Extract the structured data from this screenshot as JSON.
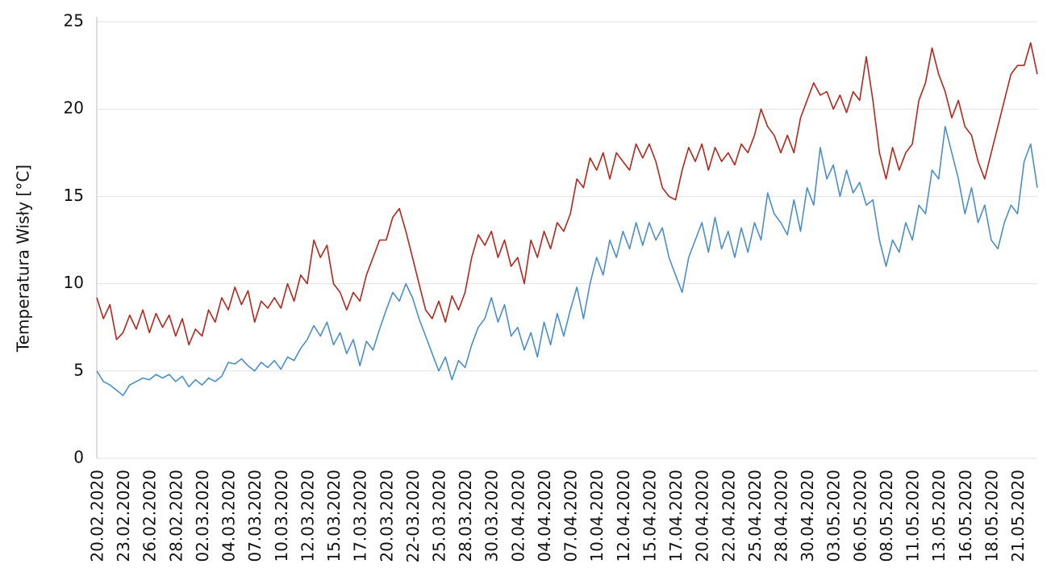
{
  "chart_data": {
    "type": "line",
    "ylabel": "Temperatura Wisły [°C]",
    "categories": [
      "20.02.2020",
      null,
      null,
      null,
      "23.02.2020",
      null,
      null,
      null,
      "26.02.2020",
      null,
      null,
      null,
      "28.02.2020",
      null,
      null,
      null,
      "02.03.2020",
      null,
      null,
      null,
      "04.03.2020",
      null,
      null,
      null,
      "07.03.2020",
      null,
      null,
      null,
      "10.03.2020",
      null,
      null,
      null,
      "12.03.2020",
      null,
      null,
      null,
      "15.03.2020",
      null,
      null,
      null,
      "17.03.2020",
      null,
      null,
      null,
      "20.03.2020",
      null,
      null,
      null,
      "22-03.2020",
      null,
      null,
      null,
      "25.03.2020",
      null,
      null,
      null,
      "28.03.2020",
      null,
      null,
      null,
      "30.03.2020",
      null,
      null,
      null,
      "02.04.2020",
      null,
      null,
      null,
      "04.04.2020",
      null,
      null,
      null,
      "07.04.2020",
      null,
      null,
      null,
      "10.04.2020",
      null,
      null,
      null,
      "12.04.2020",
      null,
      null,
      null,
      "15.04.2020",
      null,
      null,
      null,
      "17.04.2020",
      null,
      null,
      null,
      "20.04.2020",
      null,
      null,
      null,
      "22.04.2020",
      null,
      null,
      null,
      "25.04.2020",
      null,
      null,
      null,
      "28.04.2020",
      null,
      null,
      null,
      "30.04.2020",
      null,
      null,
      null,
      "03.05.2020",
      null,
      null,
      null,
      "06.05.2020",
      null,
      null,
      null,
      "08.05.2020",
      null,
      null,
      null,
      "11.05.2020",
      null,
      null,
      null,
      "13.05.2020",
      null,
      null,
      null,
      "16.05.2020",
      null,
      null,
      null,
      "18.05.2020",
      null,
      null,
      null,
      "21.05.2020",
      null,
      null,
      null
    ],
    "series": [
      {
        "color": "#b5261c",
        "values": [
          9.2,
          8.0,
          8.8,
          6.8,
          7.2,
          8.2,
          7.4,
          8.5,
          7.2,
          8.3,
          7.5,
          8.2,
          7.0,
          8.0,
          6.5,
          7.4,
          7.0,
          8.5,
          7.8,
          9.2,
          8.5,
          9.8,
          8.8,
          9.6,
          7.8,
          9.0,
          8.6,
          9.2,
          8.6,
          10.0,
          9.0,
          10.5,
          10.0,
          12.5,
          11.5,
          12.2,
          10.0,
          9.5,
          8.5,
          9.5,
          9.0,
          10.5,
          11.5,
          12.5,
          12.5,
          13.8,
          14.3,
          13.0,
          11.5,
          10.0,
          8.5,
          8.0,
          9.0,
          7.8,
          9.3,
          8.5,
          9.5,
          11.5,
          12.8,
          12.2,
          13.0,
          11.5,
          12.5,
          11.0,
          11.5,
          10.0,
          12.5,
          11.5,
          13.0,
          12.0,
          13.5,
          13.0,
          14.0,
          16.0,
          15.5,
          17.2,
          16.5,
          17.5,
          16.0,
          17.5,
          17.0,
          16.5,
          18.0,
          17.2,
          18.0,
          17.0,
          15.5,
          15.0,
          14.8,
          16.5,
          17.8,
          17.0,
          18.0,
          16.5,
          17.8,
          17.0,
          17.5,
          16.8,
          18.0,
          17.5,
          18.5,
          20.0,
          19.0,
          18.5,
          17.5,
          18.5,
          17.5,
          19.5,
          20.5,
          21.5,
          20.8,
          21.0,
          20.0,
          20.8,
          19.8,
          21.0,
          20.5,
          23.0,
          20.5,
          17.5,
          16.0,
          17.8,
          16.5,
          17.5,
          18.0,
          20.5,
          21.5,
          23.5,
          22.0,
          21.0,
          19.5,
          20.5,
          19.0,
          18.5,
          17.0,
          16.0,
          17.5,
          19.0,
          20.5,
          22.0,
          22.5,
          22.5,
          23.8,
          22.0
        ]
      },
      {
        "color": "#4a8fc9",
        "values": [
          5.0,
          4.4,
          4.2,
          3.9,
          3.6,
          4.2,
          4.4,
          4.6,
          4.5,
          4.8,
          4.6,
          4.8,
          4.4,
          4.7,
          4.1,
          4.5,
          4.2,
          4.6,
          4.4,
          4.7,
          5.5,
          5.4,
          5.7,
          5.3,
          5.0,
          5.5,
          5.2,
          5.6,
          5.1,
          5.8,
          5.6,
          6.3,
          6.8,
          7.6,
          7.0,
          7.8,
          6.5,
          7.2,
          6.0,
          6.8,
          5.3,
          6.7,
          6.2,
          7.4,
          8.5,
          9.5,
          9.0,
          10.0,
          9.2,
          8.0,
          7.0,
          6.0,
          5.0,
          5.8,
          4.5,
          5.6,
          5.2,
          6.5,
          7.5,
          8.0,
          9.2,
          7.8,
          8.8,
          7.0,
          7.5,
          6.2,
          7.2,
          5.8,
          7.8,
          6.5,
          8.3,
          7.0,
          8.5,
          9.8,
          8.0,
          10.0,
          11.5,
          10.5,
          12.5,
          11.5,
          13.0,
          12.0,
          13.5,
          12.2,
          13.5,
          12.5,
          13.2,
          11.5,
          10.5,
          9.5,
          11.5,
          12.5,
          13.5,
          11.8,
          13.8,
          12.0,
          13.0,
          11.5,
          13.2,
          11.8,
          13.5,
          12.5,
          15.2,
          14.0,
          13.5,
          12.8,
          14.8,
          13.0,
          15.5,
          14.5,
          17.8,
          16.0,
          16.8,
          15.0,
          16.5,
          15.2,
          15.8,
          14.5,
          14.8,
          12.5,
          11.0,
          12.5,
          11.8,
          13.5,
          12.5,
          14.5,
          14.0,
          16.5,
          16.0,
          19.0,
          17.5,
          16.0,
          14.0,
          15.5,
          13.5,
          14.5,
          12.5,
          12.0,
          13.5,
          14.5,
          14.0,
          17.0,
          18.0,
          15.5
        ]
      }
    ],
    "ylim": [
      0,
      25
    ],
    "yticks": [
      0,
      5,
      10,
      15,
      20,
      25
    ],
    "grid": true
  }
}
